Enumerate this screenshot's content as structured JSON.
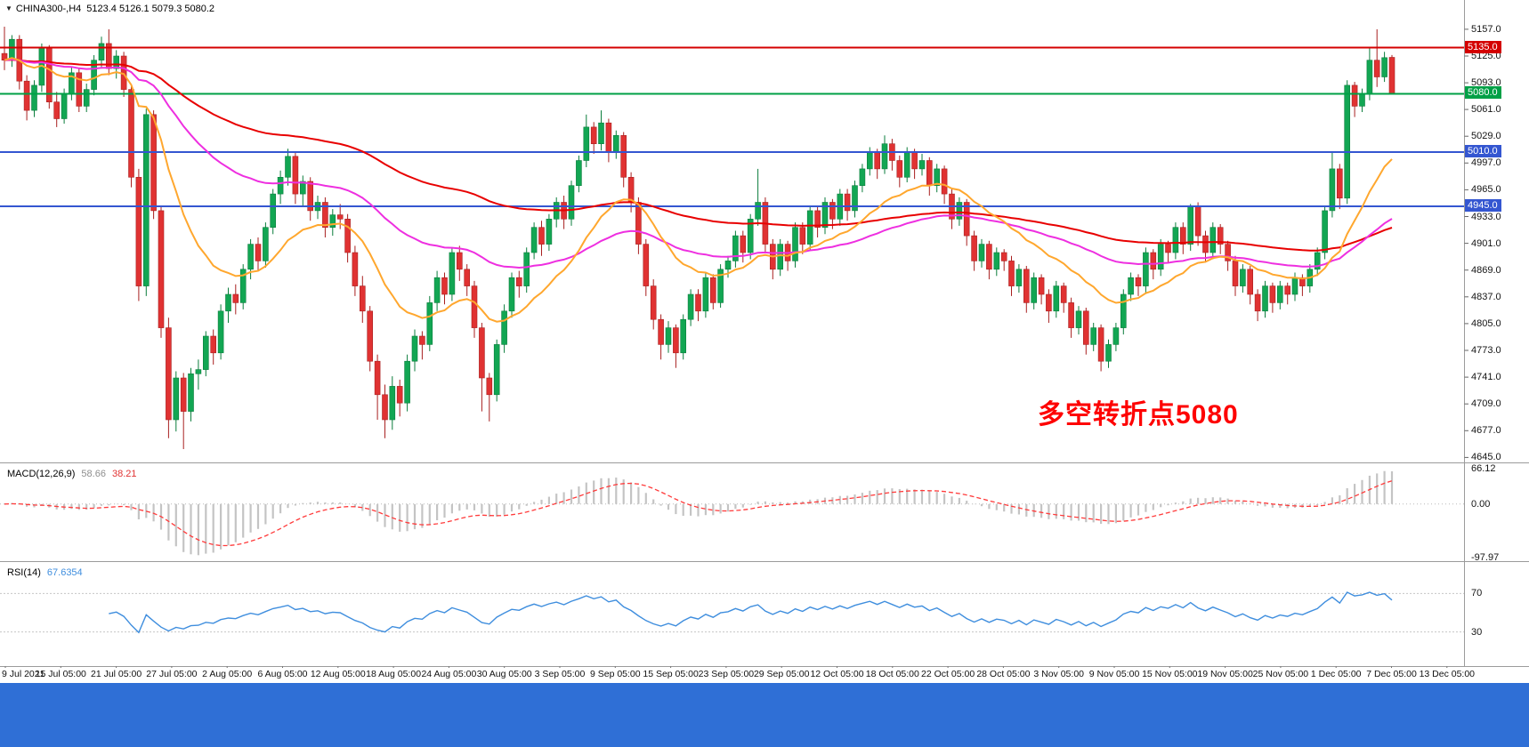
{
  "window": {
    "symbol_bar": {
      "collapse_icon": "▼",
      "title": "CHINA300-,H4",
      "ohlc": "5123.4 5126.1 5079.3 5080.2"
    }
  },
  "annotation": {
    "text": "多空转折点5080",
    "color": "#fe0000"
  },
  "footer_bar": {
    "color": "#2f6fd6"
  },
  "chart_data": {
    "type": "candlestick",
    "symbol": "CHINA300-",
    "timeframe": "H4",
    "last_ohlc": {
      "open": 5123.4,
      "high": 5126.1,
      "low": 5079.3,
      "close": 5080.2
    },
    "colors": {
      "up": "#12a653",
      "upBorder": "#0b7d3c",
      "down": "#e03232",
      "downBorder": "#a82020",
      "macd_histogram": "#c4c4c4",
      "macd_signal": "#ff3b3b",
      "rsi_line": "#3f8ede"
    },
    "price_axis": {
      "max": 5157.0,
      "step": 32,
      "labels": [
        "5157.0",
        "5125.0",
        "5093.0",
        "5061.0",
        "5029.0",
        "4997.0",
        "4965.0",
        "4933.0",
        "4901.0",
        "4869.0",
        "4837.0",
        "4805.0",
        "4773.0",
        "4741.0",
        "4709.0",
        "4677.0",
        "4645.0"
      ]
    },
    "levels": [
      {
        "price": 5135.0,
        "color": "#d40000",
        "label": "5135.0"
      },
      {
        "price": 5080.0,
        "color": "#00a046",
        "label": "5080.0"
      },
      {
        "price": 5010.0,
        "color": "#3456d1",
        "label": "5010.0"
      },
      {
        "price": 4945.0,
        "color": "#3456d1",
        "label": "4945.0"
      }
    ],
    "moving_averages": [
      {
        "name": "ma-slow",
        "period": 110,
        "color": "#e80000"
      },
      {
        "name": "ma-mid",
        "period": 55,
        "color": "#ee2fe0"
      },
      {
        "name": "ma-fast",
        "period": 18,
        "color": "#ffa72e"
      }
    ],
    "macd": {
      "label": "MACD(12,26,9)",
      "value_main": "58.66",
      "value_signal": "38.21",
      "fast": 12,
      "slow": 26,
      "signal": 9,
      "axis": [
        "66.12",
        "0.00",
        "-97.97"
      ]
    },
    "rsi": {
      "label": "RSI(14)",
      "value": "67.6354",
      "period": 14,
      "levels": [
        70,
        30
      ],
      "level_labels": [
        "70",
        "30"
      ]
    },
    "time_labels": [
      "9 Jul 2021",
      "15 Jul 05:00",
      "21 Jul 05:00",
      "27 Jul 05:00",
      "2 Aug 05:00",
      "6 Aug 05:00",
      "12 Aug 05:00",
      "18 Aug 05:00",
      "24 Aug 05:00",
      "30 Aug 05:00",
      "3 Sep 05:00",
      "9 Sep 05:00",
      "15 Sep 05:00",
      "23 Sep 05:00",
      "29 Sep 05:00",
      "12 Oct 05:00",
      "18 Oct 05:00",
      "22 Oct 05:00",
      "28 Oct 05:00",
      "3 Nov 05:00",
      "9 Nov 05:00",
      "15 Nov 05:00",
      "19 Nov 05:00",
      "25 Nov 05:00",
      "1 Dec 05:00",
      "7 Dec 05:00",
      "13 Dec 05:00"
    ],
    "candles": [
      [
        5128,
        5160,
        5108,
        5120
      ],
      [
        5120,
        5150,
        5112,
        5145
      ],
      [
        5145,
        5150,
        5085,
        5095
      ],
      [
        5095,
        5102,
        5048,
        5060
      ],
      [
        5060,
        5096,
        5052,
        5090
      ],
      [
        5090,
        5140,
        5082,
        5135
      ],
      [
        5135,
        5138,
        5062,
        5070
      ],
      [
        5070,
        5082,
        5040,
        5050
      ],
      [
        5050,
        5086,
        5044,
        5080
      ],
      [
        5080,
        5112,
        5072,
        5105
      ],
      [
        5105,
        5110,
        5058,
        5065
      ],
      [
        5065,
        5092,
        5058,
        5085
      ],
      [
        5085,
        5126,
        5078,
        5120
      ],
      [
        5120,
        5148,
        5110,
        5140
      ],
      [
        5140,
        5157,
        5102,
        5110
      ],
      [
        5110,
        5132,
        5098,
        5125
      ],
      [
        5125,
        5130,
        5076,
        5085
      ],
      [
        5085,
        5090,
        4968,
        4980
      ],
      [
        4980,
        4990,
        4832,
        4850
      ],
      [
        4850,
        5062,
        4838,
        5055
      ],
      [
        5055,
        5060,
        4930,
        4940
      ],
      [
        4940,
        4945,
        4788,
        4800
      ],
      [
        4800,
        4812,
        4668,
        4690
      ],
      [
        4690,
        4748,
        4676,
        4740
      ],
      [
        4740,
        4746,
        4655,
        4700
      ],
      [
        4700,
        4752,
        4688,
        4745
      ],
      [
        4745,
        4762,
        4726,
        4750
      ],
      [
        4750,
        4796,
        4742,
        4790
      ],
      [
        4790,
        4798,
        4756,
        4770
      ],
      [
        4770,
        4828,
        4762,
        4820
      ],
      [
        4820,
        4848,
        4806,
        4840
      ],
      [
        4840,
        4852,
        4816,
        4830
      ],
      [
        4830,
        4876,
        4822,
        4870
      ],
      [
        4870,
        4906,
        4858,
        4900
      ],
      [
        4900,
        4908,
        4868,
        4880
      ],
      [
        4880,
        4926,
        4872,
        4920
      ],
      [
        4920,
        4966,
        4912,
        4960
      ],
      [
        4960,
        4988,
        4948,
        4980
      ],
      [
        4980,
        5014,
        4970,
        5005
      ],
      [
        5005,
        5010,
        4948,
        4960
      ],
      [
        4960,
        4982,
        4946,
        4975
      ],
      [
        4975,
        4980,
        4928,
        4940
      ],
      [
        4940,
        4958,
        4930,
        4950
      ],
      [
        4950,
        4956,
        4908,
        4920
      ],
      [
        4920,
        4942,
        4910,
        4935
      ],
      [
        4935,
        4948,
        4918,
        4930
      ],
      [
        4930,
        4936,
        4878,
        4890
      ],
      [
        4890,
        4898,
        4838,
        4850
      ],
      [
        4850,
        4862,
        4806,
        4820
      ],
      [
        4820,
        4826,
        4748,
        4760
      ],
      [
        4760,
        4768,
        4690,
        4720
      ],
      [
        4720,
        4732,
        4668,
        4690
      ],
      [
        4690,
        4742,
        4678,
        4730
      ],
      [
        4730,
        4738,
        4694,
        4710
      ],
      [
        4710,
        4768,
        4700,
        4760
      ],
      [
        4760,
        4798,
        4748,
        4790
      ],
      [
        4790,
        4796,
        4762,
        4780
      ],
      [
        4780,
        4838,
        4772,
        4830
      ],
      [
        4830,
        4868,
        4820,
        4860
      ],
      [
        4860,
        4866,
        4828,
        4840
      ],
      [
        4840,
        4896,
        4832,
        4890
      ],
      [
        4890,
        4898,
        4856,
        4870
      ],
      [
        4870,
        4876,
        4838,
        4850
      ],
      [
        4850,
        4856,
        4788,
        4800
      ],
      [
        4800,
        4806,
        4700,
        4740
      ],
      [
        4740,
        4746,
        4688,
        4720
      ],
      [
        4720,
        4786,
        4712,
        4780
      ],
      [
        4780,
        4828,
        4770,
        4820
      ],
      [
        4820,
        4866,
        4812,
        4860
      ],
      [
        4860,
        4868,
        4836,
        4850
      ],
      [
        4850,
        4896,
        4842,
        4890
      ],
      [
        4890,
        4926,
        4882,
        4920
      ],
      [
        4920,
        4928,
        4886,
        4900
      ],
      [
        4900,
        4936,
        4892,
        4930
      ],
      [
        4930,
        4956,
        4920,
        4950
      ],
      [
        4950,
        4958,
        4918,
        4930
      ],
      [
        4930,
        4976,
        4922,
        4970
      ],
      [
        4970,
        5006,
        4962,
        5000
      ],
      [
        5000,
        5055,
        4992,
        5040
      ],
      [
        5040,
        5046,
        5008,
        5020
      ],
      [
        5020,
        5060,
        5012,
        5045
      ],
      [
        5045,
        5050,
        4998,
        5010
      ],
      [
        5010,
        5036,
        5002,
        5030
      ],
      [
        5030,
        5034,
        4968,
        4980
      ],
      [
        4980,
        4986,
        4938,
        4950
      ],
      [
        4950,
        4956,
        4888,
        4900
      ],
      [
        4900,
        4906,
        4838,
        4850
      ],
      [
        4850,
        4858,
        4798,
        4810
      ],
      [
        4810,
        4816,
        4762,
        4780
      ],
      [
        4780,
        4808,
        4770,
        4800
      ],
      [
        4800,
        4804,
        4752,
        4770
      ],
      [
        4770,
        4816,
        4762,
        4810
      ],
      [
        4810,
        4846,
        4802,
        4840
      ],
      [
        4840,
        4846,
        4808,
        4820
      ],
      [
        4820,
        4866,
        4812,
        4860
      ],
      [
        4860,
        4864,
        4822,
        4830
      ],
      [
        4830,
        4876,
        4824,
        4870
      ],
      [
        4870,
        4886,
        4860,
        4880
      ],
      [
        4880,
        4916,
        4872,
        4910
      ],
      [
        4910,
        4916,
        4878,
        4890
      ],
      [
        4890,
        4936,
        4882,
        4930
      ],
      [
        4930,
        4990,
        4922,
        4950
      ],
      [
        4950,
        4956,
        4890,
        4900
      ],
      [
        4900,
        4906,
        4858,
        4870
      ],
      [
        4870,
        4906,
        4862,
        4900
      ],
      [
        4900,
        4904,
        4868,
        4880
      ],
      [
        4880,
        4926,
        4872,
        4920
      ],
      [
        4920,
        4926,
        4888,
        4900
      ],
      [
        4900,
        4946,
        4892,
        4940
      ],
      [
        4940,
        4946,
        4908,
        4920
      ],
      [
        4920,
        4956,
        4912,
        4950
      ],
      [
        4950,
        4954,
        4918,
        4930
      ],
      [
        4930,
        4966,
        4922,
        4960
      ],
      [
        4960,
        4966,
        4928,
        4940
      ],
      [
        4940,
        4976,
        4932,
        4970
      ],
      [
        4970,
        4996,
        4962,
        4990
      ],
      [
        4990,
        5016,
        4982,
        5010
      ],
      [
        5010,
        5014,
        4978,
        4990
      ],
      [
        4990,
        5030,
        4984,
        5020
      ],
      [
        5020,
        5026,
        4988,
        5000
      ],
      [
        5000,
        5006,
        4968,
        4980
      ],
      [
        4980,
        5016,
        4974,
        5010
      ],
      [
        5010,
        5014,
        4978,
        4990
      ],
      [
        4990,
        5008,
        4982,
        5000
      ],
      [
        5000,
        5004,
        4958,
        4970
      ],
      [
        4970,
        4996,
        4962,
        4990
      ],
      [
        4990,
        4994,
        4948,
        4960
      ],
      [
        4960,
        4966,
        4918,
        4930
      ],
      [
        4930,
        4956,
        4922,
        4950
      ],
      [
        4950,
        4954,
        4898,
        4910
      ],
      [
        4910,
        4916,
        4868,
        4880
      ],
      [
        4880,
        4906,
        4872,
        4900
      ],
      [
        4900,
        4904,
        4858,
        4870
      ],
      [
        4870,
        4896,
        4862,
        4890
      ],
      [
        4890,
        4894,
        4868,
        4880
      ],
      [
        4880,
        4886,
        4838,
        4850
      ],
      [
        4850,
        4876,
        4842,
        4870
      ],
      [
        4870,
        4874,
        4818,
        4830
      ],
      [
        4830,
        4866,
        4822,
        4860
      ],
      [
        4860,
        4864,
        4828,
        4840
      ],
      [
        4840,
        4846,
        4806,
        4820
      ],
      [
        4820,
        4856,
        4812,
        4850
      ],
      [
        4850,
        4854,
        4818,
        4830
      ],
      [
        4830,
        4836,
        4788,
        4800
      ],
      [
        4800,
        4826,
        4792,
        4820
      ],
      [
        4820,
        4824,
        4768,
        4780
      ],
      [
        4780,
        4806,
        4772,
        4800
      ],
      [
        4800,
        4804,
        4748,
        4760
      ],
      [
        4760,
        4786,
        4752,
        4780
      ],
      [
        4780,
        4806,
        4772,
        4800
      ],
      [
        4800,
        4846,
        4792,
        4840
      ],
      [
        4840,
        4866,
        4832,
        4860
      ],
      [
        4860,
        4864,
        4838,
        4850
      ],
      [
        4850,
        4896,
        4842,
        4890
      ],
      [
        4890,
        4894,
        4858,
        4870
      ],
      [
        4870,
        4906,
        4862,
        4900
      ],
      [
        4900,
        4904,
        4878,
        4890
      ],
      [
        4890,
        4926,
        4882,
        4920
      ],
      [
        4920,
        4926,
        4888,
        4900
      ],
      [
        4900,
        4948,
        4892,
        4945
      ],
      [
        4945,
        4950,
        4898,
        4910
      ],
      [
        4910,
        4916,
        4878,
        4890
      ],
      [
        4890,
        4926,
        4882,
        4920
      ],
      [
        4920,
        4924,
        4888,
        4900
      ],
      [
        4900,
        4904,
        4868,
        4880
      ],
      [
        4880,
        4886,
        4838,
        4850
      ],
      [
        4850,
        4876,
        4842,
        4870
      ],
      [
        4870,
        4874,
        4828,
        4840
      ],
      [
        4840,
        4846,
        4808,
        4820
      ],
      [
        4820,
        4856,
        4812,
        4850
      ],
      [
        4850,
        4854,
        4818,
        4830
      ],
      [
        4830,
        4856,
        4822,
        4850
      ],
      [
        4850,
        4854,
        4828,
        4840
      ],
      [
        4840,
        4866,
        4832,
        4860
      ],
      [
        4860,
        4864,
        4838,
        4850
      ],
      [
        4850,
        4876,
        4842,
        4870
      ],
      [
        4870,
        4896,
        4862,
        4890
      ],
      [
        4890,
        4946,
        4882,
        4940
      ],
      [
        4940,
        5010,
        4932,
        4990
      ],
      [
        4990,
        4996,
        4942,
        4955
      ],
      [
        4955,
        5096,
        4948,
        5090
      ],
      [
        5090,
        5094,
        5052,
        5065
      ],
      [
        5065,
        5086,
        5058,
        5080
      ],
      [
        5080,
        5135,
        5072,
        5120
      ],
      [
        5120,
        5157,
        5088,
        5100
      ],
      [
        5100,
        5130,
        5094,
        5123
      ],
      [
        5123.4,
        5126.1,
        5079.3,
        5080.2
      ]
    ]
  }
}
